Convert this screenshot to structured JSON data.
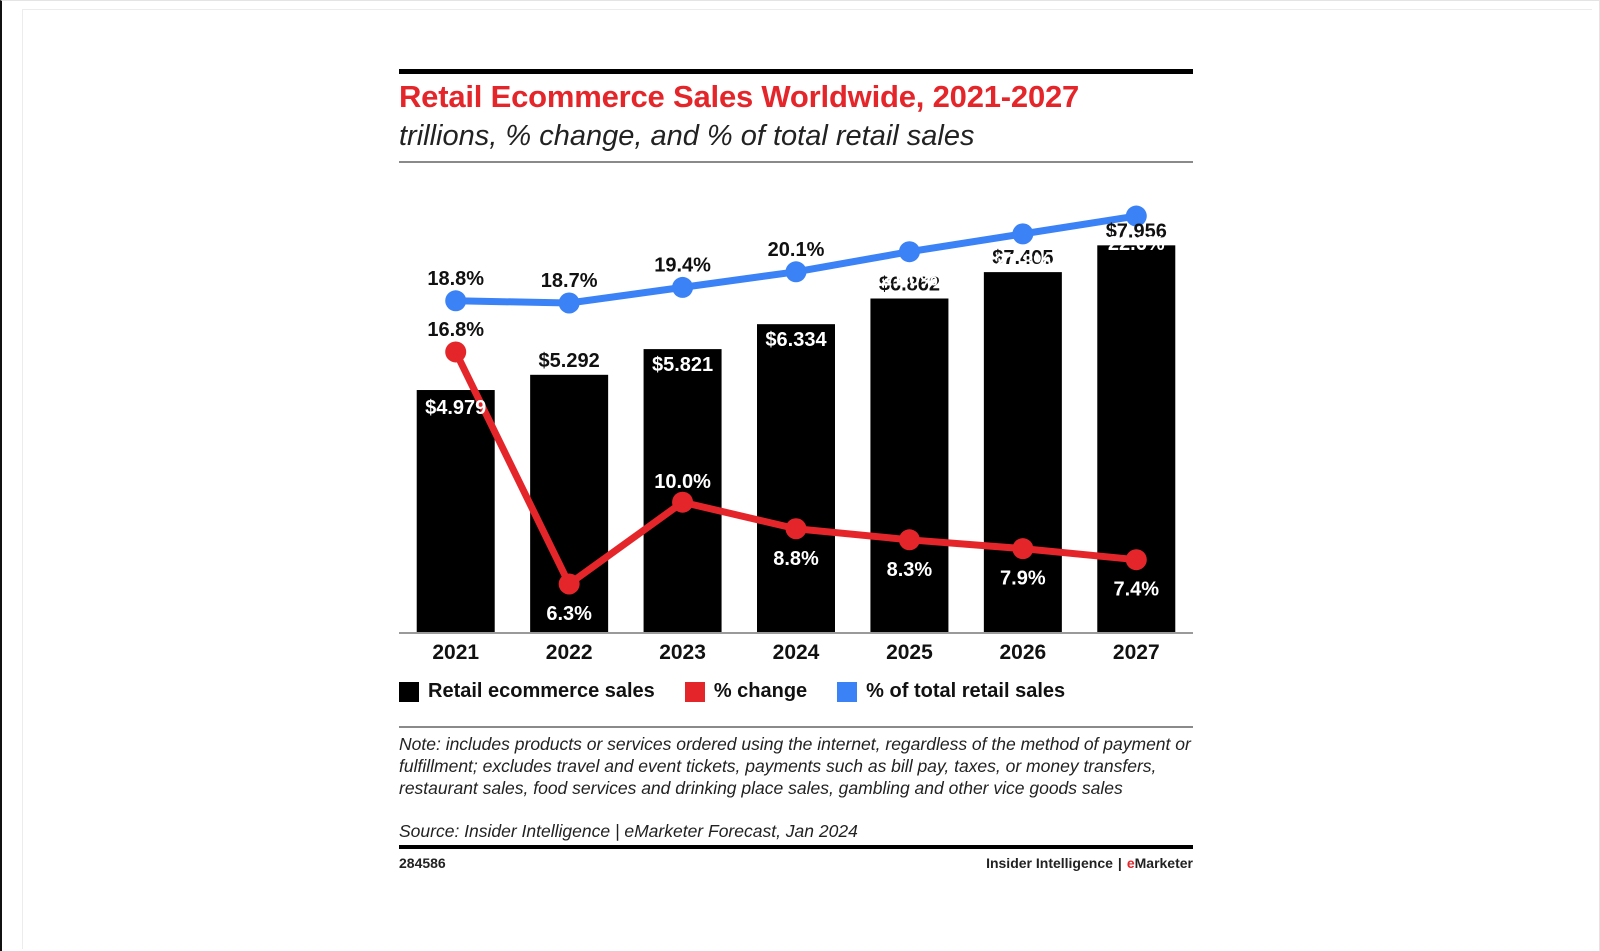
{
  "title": "Retail Ecommerce Sales Worldwide, 2021-2027",
  "subtitle": "trillions, % change, and % of total retail sales",
  "legend": [
    {
      "label": "Retail ecommerce sales",
      "color": "#000000"
    },
    {
      "label": "% change",
      "color": "#e4262b"
    },
    {
      "label": "% of total retail sales",
      "color": "#3b82f6"
    }
  ],
  "note": "Note: includes products or services ordered using the internet, regardless of the method of payment or fulfillment; excludes travel and event tickets, payments such as bill pay, taxes, or money transfers, restaurant sales, food services and drinking place sales, gambling and other vice goods sales",
  "source": "Source: Insider Intelligence | eMarketer Forecast, Jan 2024",
  "chart_id": "284586",
  "brand": {
    "left": "Insider Intelligence",
    "separator": "|",
    "e": "e",
    "right": "Marketer"
  },
  "chart_data": {
    "type": "bar",
    "title": "Retail Ecommerce Sales Worldwide, 2021-2027",
    "subtitle": "trillions, % change, and % of total retail sales",
    "categories": [
      "2021",
      "2022",
      "2023",
      "2024",
      "2025",
      "2026",
      "2027"
    ],
    "series": [
      {
        "name": "Retail ecommerce sales",
        "type": "bar",
        "color": "#000000",
        "values": [
          4.979,
          5.292,
          5.821,
          6.334,
          6.862,
          7.405,
          7.956
        ],
        "labels": [
          "$4.979",
          "$5.292",
          "$5.821",
          "$6.334",
          "$6.862",
          "$7.405",
          "$7.956"
        ]
      },
      {
        "name": "% change",
        "type": "line",
        "color": "#e4262b",
        "values": [
          16.8,
          6.3,
          10.0,
          8.8,
          8.3,
          7.9,
          7.4
        ],
        "labels": [
          "16.8%",
          "6.3%",
          "10.0%",
          "8.8%",
          "8.3%",
          "7.9%",
          "7.4%"
        ]
      },
      {
        "name": "% of total retail sales",
        "type": "line",
        "color": "#3b82f6",
        "values": [
          18.8,
          18.7,
          19.4,
          20.1,
          21.0,
          21.8,
          22.6
        ],
        "labels": [
          "18.8%",
          "18.7%",
          "19.4%",
          "20.1%",
          "21.0%",
          "21.8%",
          "22.6%"
        ]
      }
    ],
    "legend_position": "bottom",
    "grid": false
  }
}
